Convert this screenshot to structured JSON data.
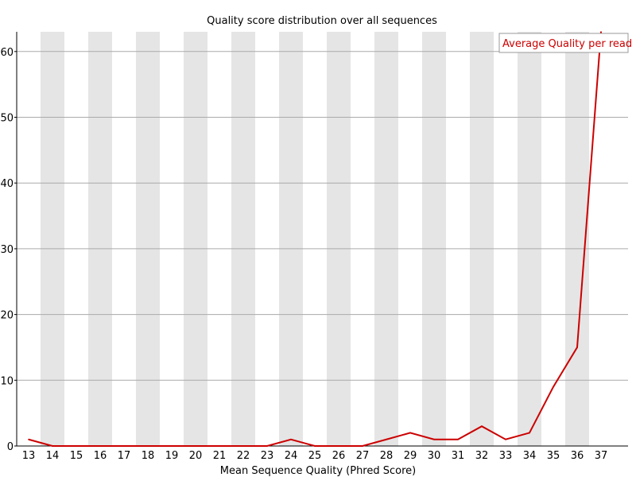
{
  "chart_data": {
    "type": "line",
    "title": "Quality score distribution over all sequences",
    "xlabel": "Mean Sequence Quality (Phred Score)",
    "ylabel": "",
    "x": [
      13,
      14,
      15,
      16,
      17,
      18,
      19,
      20,
      21,
      22,
      23,
      24,
      25,
      26,
      27,
      28,
      29,
      30,
      31,
      32,
      33,
      34,
      35,
      36,
      37
    ],
    "series": [
      {
        "name": "Average Quality per read",
        "color": "#cc0000",
        "values": [
          1,
          0,
          0,
          0,
          0,
          0,
          0,
          0,
          0,
          0,
          0,
          1,
          0,
          0,
          0,
          1,
          2,
          1,
          1,
          3,
          1,
          2,
          9,
          15,
          63
        ]
      }
    ],
    "ylim": [
      0,
      63
    ],
    "yticks": [
      0,
      10,
      20,
      30,
      40,
      50,
      60
    ],
    "grid": true,
    "alternating_bands": true,
    "legend_position": "top-right"
  }
}
